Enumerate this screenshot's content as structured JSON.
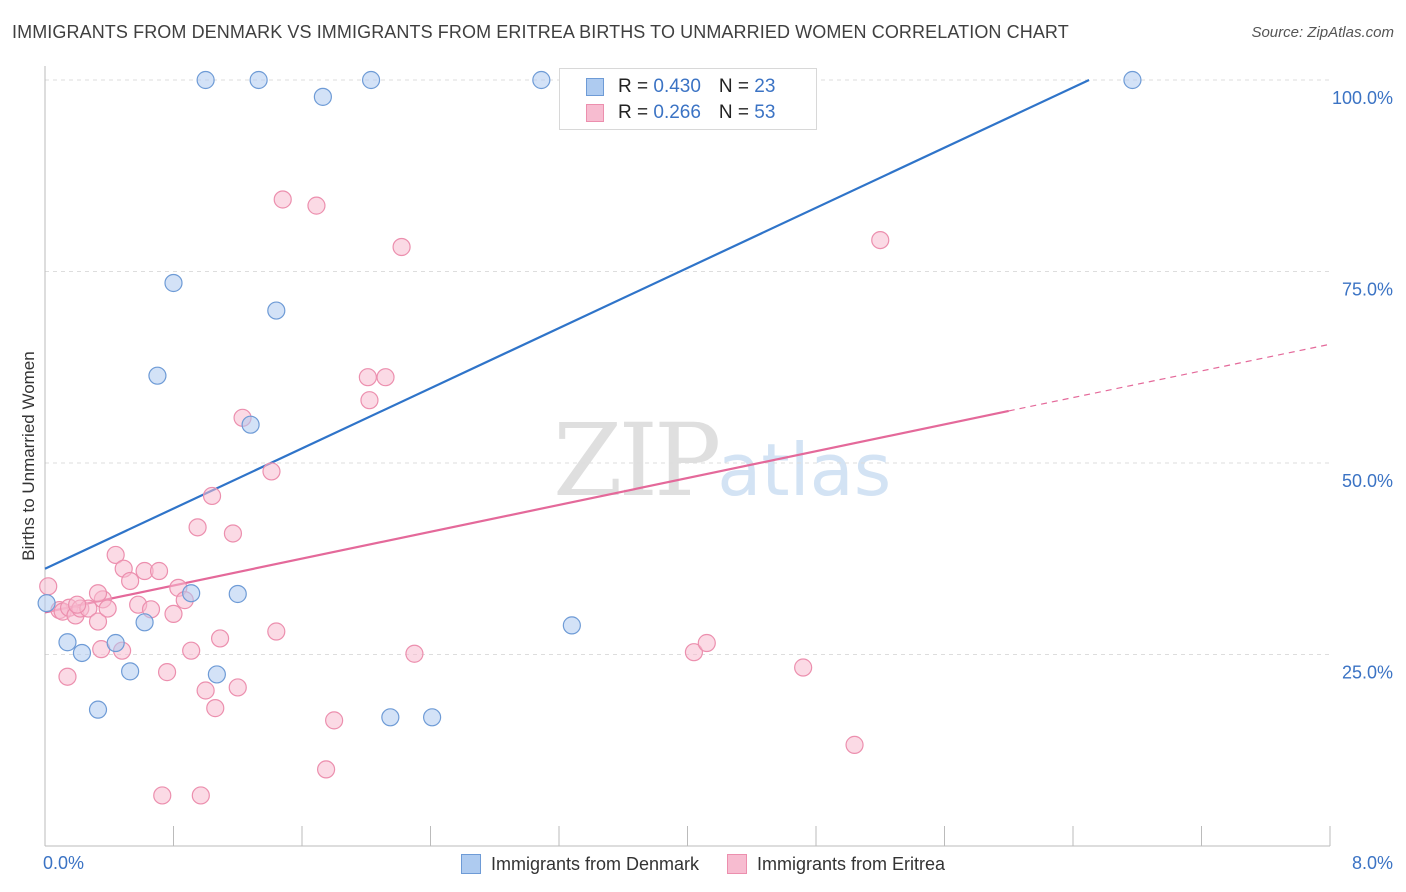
{
  "title": "IMMIGRANTS FROM DENMARK VS IMMIGRANTS FROM ERITREA BIRTHS TO UNMARRIED WOMEN CORRELATION CHART",
  "source": "Source: ZipAtlas.com",
  "watermark": {
    "zip": "ZIP",
    "atlas": "atlas"
  },
  "legend_top": {
    "r_label": "R = ",
    "n_label": "N = ",
    "series1": {
      "r": "0.430",
      "n": "23"
    },
    "series2": {
      "r": "0.266",
      "n": "53"
    }
  },
  "colors": {
    "denmark_fill": "#aecbf0",
    "denmark_stroke": "#6e9bd6",
    "denmark_line": "#2f74c9",
    "eritrea_fill": "#f7bcd0",
    "eritrea_stroke": "#ec8fae",
    "eritrea_line": "#e4699a",
    "tick_text": "#3b73c4",
    "grid": "#dddddd"
  },
  "chart_data": {
    "type": "scatter",
    "title": "IMMIGRANTS FROM DENMARK VS IMMIGRANTS FROM ERITREA BIRTHS TO UNMARRIED WOMEN CORRELATION CHART",
    "xlabel": "",
    "ylabel": "Births to Unmarried Women",
    "xlim": [
      0,
      8
    ],
    "ylim": [
      0,
      100
    ],
    "x_tick_labels": [
      "0.0%",
      "8.0%"
    ],
    "y_ticks": [
      25,
      50,
      75,
      100
    ],
    "y_tick_labels": [
      "25.0%",
      "50.0%",
      "75.0%",
      "100.0%"
    ],
    "grid": true,
    "series": [
      {
        "name": "Immigrants from Denmark",
        "points": [
          [
            1.0,
            100
          ],
          [
            1.33,
            100
          ],
          [
            2.03,
            100
          ],
          [
            3.09,
            100
          ],
          [
            6.77,
            100
          ],
          [
            1.73,
            97.8
          ],
          [
            0.8,
            73.5
          ],
          [
            1.44,
            69.9
          ],
          [
            0.7,
            61.4
          ],
          [
            1.28,
            55.0
          ],
          [
            0.01,
            31.7
          ],
          [
            0.14,
            26.6
          ],
          [
            0.23,
            25.2
          ],
          [
            0.44,
            26.5
          ],
          [
            0.62,
            29.2
          ],
          [
            0.91,
            33.0
          ],
          [
            1.2,
            32.9
          ],
          [
            3.28,
            28.8
          ],
          [
            0.33,
            17.8
          ],
          [
            0.53,
            22.8
          ],
          [
            1.07,
            22.4
          ],
          [
            2.15,
            16.8
          ],
          [
            2.41,
            16.8
          ]
        ],
        "trend": {
          "x": [
            0,
            6.5
          ],
          "y": [
            36.2,
            100
          ]
        }
      },
      {
        "name": "Immigrants from Eritrea",
        "points": [
          [
            0.02,
            33.9
          ],
          [
            0.09,
            30.8
          ],
          [
            0.11,
            30.6
          ],
          [
            0.15,
            31.1
          ],
          [
            0.19,
            30.1
          ],
          [
            0.22,
            31.0
          ],
          [
            0.27,
            31.0
          ],
          [
            0.33,
            29.3
          ],
          [
            0.36,
            32.2
          ],
          [
            0.39,
            31.0
          ],
          [
            0.44,
            38.0
          ],
          [
            0.49,
            36.2
          ],
          [
            0.53,
            34.6
          ],
          [
            0.58,
            31.5
          ],
          [
            0.62,
            35.9
          ],
          [
            0.66,
            30.9
          ],
          [
            0.71,
            35.9
          ],
          [
            0.76,
            22.7
          ],
          [
            0.8,
            30.3
          ],
          [
            0.83,
            33.7
          ],
          [
            0.87,
            32.1
          ],
          [
            0.91,
            25.5
          ],
          [
            0.95,
            41.6
          ],
          [
            1.0,
            20.3
          ],
          [
            1.04,
            45.7
          ],
          [
            1.09,
            27.1
          ],
          [
            1.17,
            40.8
          ],
          [
            1.2,
            20.7
          ],
          [
            1.23,
            55.9
          ],
          [
            1.41,
            48.9
          ],
          [
            1.44,
            28.0
          ],
          [
            1.48,
            84.4
          ],
          [
            1.69,
            83.6
          ],
          [
            1.8,
            16.4
          ],
          [
            2.02,
            58.2
          ],
          [
            2.01,
            61.2
          ],
          [
            2.12,
            61.2
          ],
          [
            2.22,
            78.2
          ],
          [
            2.3,
            25.1
          ],
          [
            4.04,
            25.3
          ],
          [
            4.12,
            26.5
          ],
          [
            4.72,
            23.3
          ],
          [
            5.04,
            13.2
          ],
          [
            5.2,
            79.1
          ],
          [
            0.35,
            25.7
          ],
          [
            0.48,
            25.5
          ],
          [
            0.14,
            22.1
          ],
          [
            1.06,
            18.0
          ],
          [
            1.75,
            10.0
          ],
          [
            0.73,
            6.6
          ],
          [
            0.97,
            6.6
          ],
          [
            0.33,
            33.0
          ],
          [
            0.2,
            31.5
          ]
        ],
        "trend": {
          "x": [
            0,
            6.0
          ],
          "y": [
            30.5,
            56.8
          ]
        },
        "trend_extrapolated": {
          "x": [
            6.0,
            8.0
          ],
          "y": [
            56.8,
            65.5
          ]
        }
      }
    ]
  }
}
